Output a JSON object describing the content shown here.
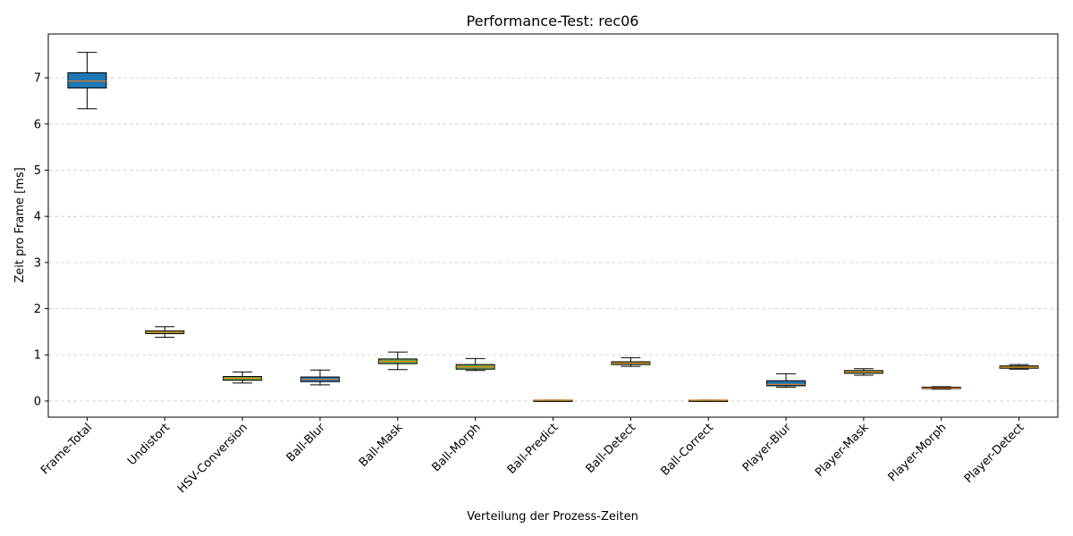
{
  "chart_data": {
    "type": "box",
    "title": "Performance-Test: rec06",
    "xlabel": "Verteilung der Prozess-Zeiten",
    "ylabel": "Zeit pro Frame [ms]",
    "ylim": [
      -0.35,
      7.95
    ],
    "yticks": [
      0,
      1,
      2,
      3,
      4,
      5,
      6,
      7
    ],
    "grid": "y-dashed",
    "colors": {
      "box_fill_primary": "#1f77b4",
      "box_fill_secondary": "#6aa84f",
      "median": "#ff7f0e",
      "grid": "#c8c8c8"
    },
    "categories": [
      "Frame-Total",
      "Undistort",
      "HSV-Conversion",
      "Ball-Blur",
      "Ball-Mask",
      "Ball-Morph",
      "Ball-Predict",
      "Ball-Detect",
      "Ball-Correct",
      "Player-Blur",
      "Player-Mask",
      "Player-Morph",
      "Player-Detect"
    ],
    "boxes": [
      {
        "whisker_low": 6.33,
        "q1": 6.78,
        "median": 6.93,
        "q3": 7.11,
        "whisker_high": 7.55,
        "fill": "primary"
      },
      {
        "whisker_low": 1.38,
        "q1": 1.46,
        "median": 1.49,
        "q3": 1.52,
        "whisker_high": 1.61,
        "fill": "secondary"
      },
      {
        "whisker_low": 0.39,
        "q1": 0.45,
        "median": 0.49,
        "q3": 0.53,
        "whisker_high": 0.63,
        "fill": "secondary"
      },
      {
        "whisker_low": 0.35,
        "q1": 0.42,
        "median": 0.47,
        "q3": 0.52,
        "whisker_high": 0.67,
        "fill": "primary"
      },
      {
        "whisker_low": 0.68,
        "q1": 0.81,
        "median": 0.86,
        "q3": 0.91,
        "whisker_high": 1.06,
        "fill": "secondary"
      },
      {
        "whisker_low": 0.66,
        "q1": 0.69,
        "median": 0.74,
        "q3": 0.79,
        "whisker_high": 0.92,
        "fill": "secondary"
      },
      {
        "whisker_low": 0.01,
        "q1": 0.01,
        "median": 0.02,
        "q3": 0.02,
        "whisker_high": 0.02,
        "fill": "secondary"
      },
      {
        "whisker_low": 0.75,
        "q1": 0.79,
        "median": 0.82,
        "q3": 0.85,
        "whisker_high": 0.94,
        "fill": "secondary"
      },
      {
        "whisker_low": 0.01,
        "q1": 0.01,
        "median": 0.02,
        "q3": 0.02,
        "whisker_high": 0.02,
        "fill": "secondary"
      },
      {
        "whisker_low": 0.3,
        "q1": 0.33,
        "median": 0.36,
        "q3": 0.44,
        "whisker_high": 0.59,
        "fill": "primary"
      },
      {
        "whisker_low": 0.56,
        "q1": 0.6,
        "median": 0.63,
        "q3": 0.66,
        "whisker_high": 0.7,
        "fill": "secondary"
      },
      {
        "whisker_low": 0.26,
        "q1": 0.27,
        "median": 0.28,
        "q3": 0.3,
        "whisker_high": 0.31,
        "fill": "secondary"
      },
      {
        "whisker_low": 0.69,
        "q1": 0.71,
        "median": 0.73,
        "q3": 0.76,
        "whisker_high": 0.79,
        "fill": "secondary"
      }
    ]
  }
}
